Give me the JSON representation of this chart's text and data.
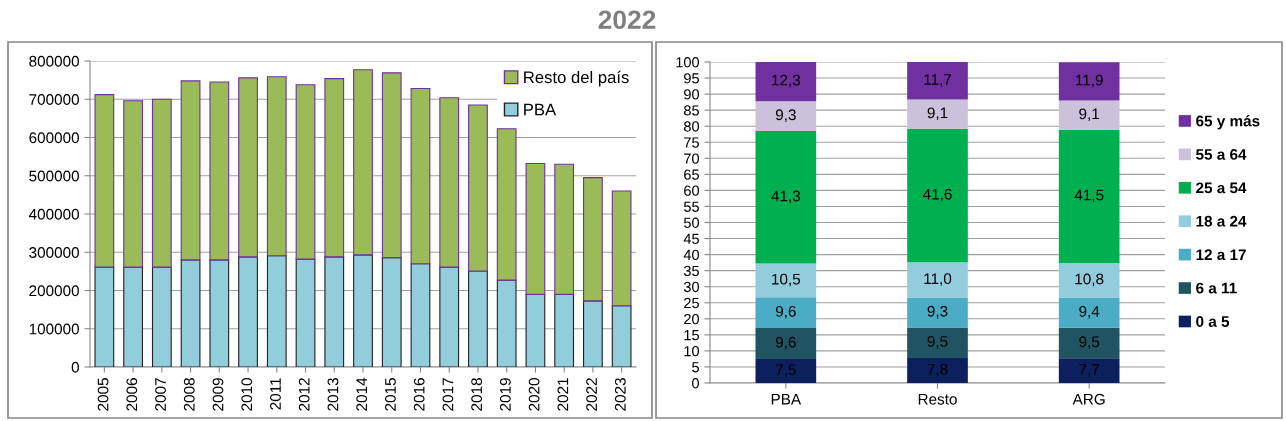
{
  "chart_data": [
    {
      "type": "bar",
      "stacked": true,
      "title": "2022",
      "categories": [
        "2005",
        "2006",
        "2007",
        "2008",
        "2009",
        "2010",
        "2011",
        "2012",
        "2013",
        "2014",
        "2015",
        "2016",
        "2017",
        "2018",
        "2019",
        "2020",
        "2021",
        "2022",
        "2023"
      ],
      "series": [
        {
          "name": "PBA",
          "color": "#92cddc",
          "values": [
            261000,
            261000,
            261000,
            280000,
            280000,
            288000,
            291000,
            282000,
            288000,
            293000,
            286000,
            270000,
            261000,
            251000,
            227000,
            190000,
            190000,
            173000,
            160000
          ]
        },
        {
          "name": "Resto del país",
          "color": "#9bbb59",
          "values": [
            451000,
            435000,
            439000,
            468000,
            465000,
            468000,
            468000,
            456000,
            466000,
            484000,
            483000,
            458000,
            443000,
            434000,
            396000,
            342000,
            340000,
            322000,
            300000
          ]
        }
      ],
      "ylim": [
        0,
        800000
      ],
      "yticks": [
        0,
        100000,
        200000,
        300000,
        400000,
        500000,
        600000,
        700000,
        800000
      ],
      "grid": "y",
      "legend": "top right"
    },
    {
      "type": "bar",
      "stacked": true,
      "categories": [
        "PBA",
        "Resto",
        "ARG"
      ],
      "series": [
        {
          "name": "0 a 5",
          "color": "#0c1f5e",
          "values": [
            7.5,
            7.8,
            7.7
          ],
          "value_labels": [
            "7,5",
            "7,8",
            "7,7"
          ]
        },
        {
          "name": "6 a 11",
          "color": "#215462",
          "values": [
            9.6,
            9.5,
            9.5
          ],
          "value_labels": [
            "9,6",
            "9,5",
            "9,5"
          ]
        },
        {
          "name": "12 a 17",
          "color": "#4bacc6",
          "values": [
            9.6,
            9.3,
            9.4
          ],
          "value_labels": [
            "9,6",
            "9,3",
            "9,4"
          ]
        },
        {
          "name": "18 a 24",
          "color": "#93cddd",
          "values": [
            10.5,
            11.0,
            10.8
          ],
          "value_labels": [
            "10,5",
            "11,0",
            "10,8"
          ]
        },
        {
          "name": "25 a 54",
          "color": "#00b050",
          "values": [
            41.3,
            41.6,
            41.5
          ],
          "value_labels": [
            "41,3",
            "41,6",
            "41,5"
          ]
        },
        {
          "name": "55 a 64",
          "color": "#ccc1da",
          "values": [
            9.3,
            9.1,
            9.1
          ],
          "value_labels": [
            "9,3",
            "9,1",
            "9,1"
          ]
        },
        {
          "name": "65 y más",
          "color": "#7030a0",
          "values": [
            12.3,
            11.7,
            11.9
          ],
          "value_labels": [
            "12,3",
            "11,7",
            "11,9"
          ]
        }
      ],
      "ylim": [
        0,
        100
      ],
      "yticks": [
        0,
        5,
        10,
        15,
        20,
        25,
        30,
        35,
        40,
        45,
        50,
        55,
        60,
        65,
        70,
        75,
        80,
        85,
        90,
        95,
        100
      ],
      "grid": "y",
      "legend": "right"
    }
  ]
}
